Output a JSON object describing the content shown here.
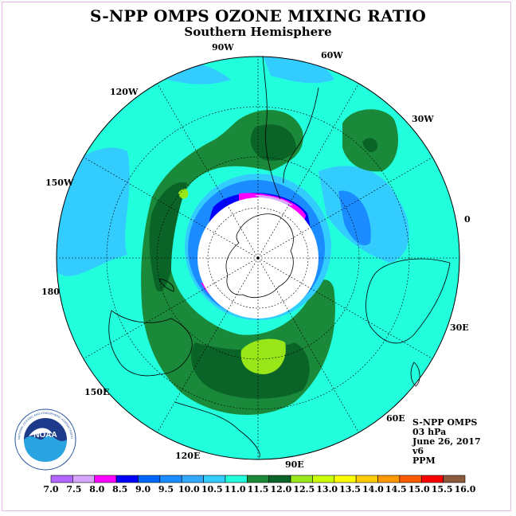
{
  "title": "S-NPP OMPS OZONE MIXING RATIO",
  "subtitle": "Southern Hemisphere",
  "longitude_labels": [
    "90W",
    "60W",
    "30W",
    "0",
    "30E",
    "60E",
    "90E",
    "120E",
    "150E",
    "180",
    "150W",
    "120W"
  ],
  "info": {
    "instrument": "S-NPP OMPS",
    "level": "03 hPa",
    "date": "June 26, 2017",
    "version": "v6",
    "units": "PPM"
  },
  "logo": {
    "text": "NOAA",
    "ring_text": "NATIONAL OCEANIC AND ATMOSPHERIC ADMINISTRATION · U.S. DEPARTMENT OF COMMERCE"
  },
  "colorbar": {
    "labels": [
      "7.0",
      "7.5",
      "8.0",
      "8.5",
      "9.0",
      "9.5",
      "10.0",
      "10.5",
      "11.0",
      "11.5",
      "12.0",
      "12.5",
      "13.0",
      "13.5",
      "14.0",
      "14.5",
      "15.0",
      "15.5",
      "16.0"
    ],
    "colors": [
      "#b266ff",
      "#d9a6ff",
      "#ff00ff",
      "#0000ff",
      "#0066ff",
      "#1a8cff",
      "#33aaff",
      "#33ccff",
      "#22ffdd",
      "#1a8a3a",
      "#0a6428",
      "#99e619",
      "#ccff00",
      "#ffff00",
      "#ffcc00",
      "#ff9900",
      "#ff5a00",
      "#ff0000",
      "#8b5a3c"
    ]
  },
  "colors": {
    "base": "#22ffdd",
    "light_blue": "#33ccff",
    "mid_blue": "#1a8cff",
    "green": "#1a8a3a",
    "dark_green": "#0a6428",
    "lime": "#99e619",
    "blue": "#0000ff",
    "magenta": "#ff00ff",
    "violet": "#d9a6ff"
  }
}
